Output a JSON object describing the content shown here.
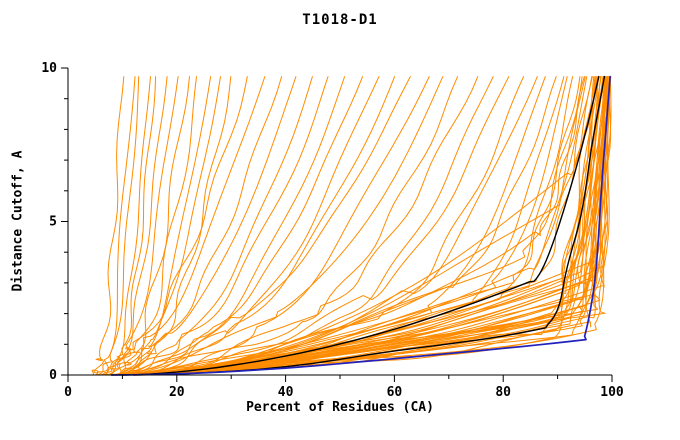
{
  "axes": {
    "x": {
      "label": "Percent of Residues (CA)",
      "min": 0,
      "max": 100,
      "major_ticks": [
        0,
        20,
        40,
        60,
        80,
        100
      ],
      "minor_step": 10
    },
    "y": {
      "label": "Distance Cutoff, A",
      "min": 0,
      "max": 10,
      "major_ticks": [
        0,
        5,
        10
      ],
      "minor_step": 1
    }
  },
  "colors": {
    "model_orange": "#ff8c00",
    "highlight_black": "#000000",
    "reference_blue": "#2222bb",
    "frame": "#000000",
    "background": "#ffffff"
  },
  "chart_data": {
    "type": "line",
    "title": "T1018-D1",
    "xlabel": "Percent of Residues (CA)",
    "ylabel": "Distance Cutoff, A",
    "xlim": [
      0,
      100
    ],
    "ylim": [
      0,
      10
    ],
    "grid": false,
    "legend": "none",
    "note": "CASP-style cumulative distance-cutoff plot. Each curve encoded as [start_x_percent_at_y0, knee_x_percent, knee_y_angstrom, top_x_percent_at_ymax]; curves rise slowly from (start_x,0) to the knee, then steeply to the top of the axis (~9.7 A).",
    "y_top_clip": 9.72,
    "series_groups": [
      {
        "name": "models",
        "curve_name": "model-curve",
        "color": "#ff8c00",
        "width": 1,
        "wiggle": 1,
        "curves": [
          [
            4,
            6,
            0.4,
            10
          ],
          [
            5,
            7,
            0.5,
            12
          ],
          [
            5,
            8,
            0.6,
            13
          ],
          [
            6,
            9,
            0.5,
            15
          ],
          [
            6,
            10,
            0.8,
            16
          ],
          [
            7,
            10,
            0.6,
            18
          ],
          [
            7,
            11,
            0.9,
            20
          ],
          [
            8,
            12,
            0.7,
            22
          ],
          [
            8,
            13,
            1.0,
            24
          ],
          [
            9,
            14,
            0.8,
            26
          ],
          [
            9,
            15,
            1.1,
            28
          ],
          [
            10,
            16,
            0.9,
            30
          ],
          [
            6,
            12,
            1.0,
            33
          ],
          [
            7,
            14,
            1.2,
            36
          ],
          [
            8,
            16,
            1.0,
            39
          ],
          [
            9,
            18,
            1.3,
            42
          ],
          [
            10,
            20,
            1.1,
            45
          ],
          [
            8,
            22,
            1.4,
            48
          ],
          [
            9,
            24,
            1.2,
            51
          ],
          [
            10,
            26,
            1.5,
            54
          ],
          [
            11,
            28,
            1.3,
            57
          ],
          [
            12,
            30,
            1.6,
            60
          ],
          [
            7,
            30,
            1.8,
            63
          ],
          [
            8,
            34,
            1.5,
            66
          ],
          [
            9,
            38,
            2.0,
            69
          ],
          [
            10,
            42,
            1.7,
            72
          ],
          [
            11,
            46,
            2.2,
            75
          ],
          [
            12,
            50,
            1.9,
            78
          ],
          [
            9,
            54,
            2.4,
            81
          ],
          [
            10,
            58,
            2.0,
            84
          ],
          [
            11,
            62,
            2.6,
            86
          ],
          [
            12,
            66,
            2.2,
            88
          ],
          [
            6,
            70,
            2.8,
            90
          ],
          [
            7,
            74,
            2.4,
            91
          ],
          [
            8,
            78,
            3.0,
            92
          ],
          [
            9,
            80,
            2.6,
            93
          ],
          [
            10,
            82,
            3.2,
            94
          ],
          [
            6,
            84,
            2.8,
            95
          ],
          [
            7,
            85,
            3.4,
            95.5
          ],
          [
            8,
            86,
            3.0,
            96
          ],
          [
            10,
            86,
            4.5,
            95
          ],
          [
            12,
            90,
            5.5,
            96.5
          ],
          [
            14,
            92,
            6.5,
            97.5
          ],
          [
            9,
            84,
            4.0,
            94.5
          ],
          [
            5,
            88,
            1.4,
            96.5
          ],
          [
            6,
            89,
            1.8,
            97
          ],
          [
            7,
            90,
            2.2,
            97.5
          ],
          [
            8,
            90,
            1.5,
            97
          ],
          [
            9,
            91,
            2.6,
            98
          ],
          [
            5,
            91,
            1.9,
            98.2
          ],
          [
            6,
            92,
            2.3,
            98.4
          ],
          [
            7,
            92,
            1.6,
            98
          ],
          [
            8,
            93,
            2.8,
            98.6
          ],
          [
            9,
            93,
            2.0,
            98.8
          ],
          [
            5,
            94,
            2.4,
            99
          ],
          [
            6,
            94,
            1.7,
            98.8
          ],
          [
            7,
            95,
            2.9,
            99.2
          ],
          [
            8,
            95,
            2.1,
            99
          ],
          [
            9,
            95,
            1.5,
            99.3
          ],
          [
            10,
            96,
            2.5,
            99.4
          ],
          [
            5,
            96,
            1.8,
            99.5
          ],
          [
            6,
            96,
            3.0,
            99.4
          ],
          [
            7,
            97,
            2.2,
            99.6
          ],
          [
            8,
            97,
            1.6,
            99.5
          ],
          [
            9,
            97,
            2.6,
            99.7
          ],
          [
            10,
            97,
            3.2,
            99.6
          ],
          [
            6,
            98,
            2.0,
            99.8
          ],
          [
            7,
            98,
            2.8,
            99.8
          ],
          [
            8,
            98,
            3.5,
            99.9
          ],
          [
            5,
            89,
            1.2,
            97.2
          ],
          [
            6,
            90,
            2.9,
            97.8
          ],
          [
            7,
            91,
            2.1,
            98.1
          ],
          [
            8,
            92,
            3.1,
            98.3
          ],
          [
            9,
            94,
            2.2,
            99.1
          ],
          [
            10,
            94,
            3.3,
            99.2
          ],
          [
            5,
            95,
            2.6,
            99.1
          ],
          [
            6,
            93,
            1.4,
            98.7
          ],
          [
            7,
            96,
            2.4,
            99.3
          ],
          [
            8,
            96,
            3.6,
            99.5
          ]
        ]
      },
      {
        "name": "highlighted-models",
        "curve_name": "highlighted-model-curve",
        "color": "#000000",
        "width": 1.4,
        "wiggle": 0.35,
        "curves": [
          [
            10,
            85,
            3.0,
            97.5
          ],
          [
            12,
            88,
            1.6,
            98.5
          ]
        ]
      },
      {
        "name": "reference-model",
        "curve_name": "reference-model-curve",
        "color": "#2222bb",
        "width": 1.7,
        "wiggle": 0.25,
        "curves": [
          [
            8,
            95,
            1.2,
            99.6
          ]
        ]
      }
    ]
  }
}
